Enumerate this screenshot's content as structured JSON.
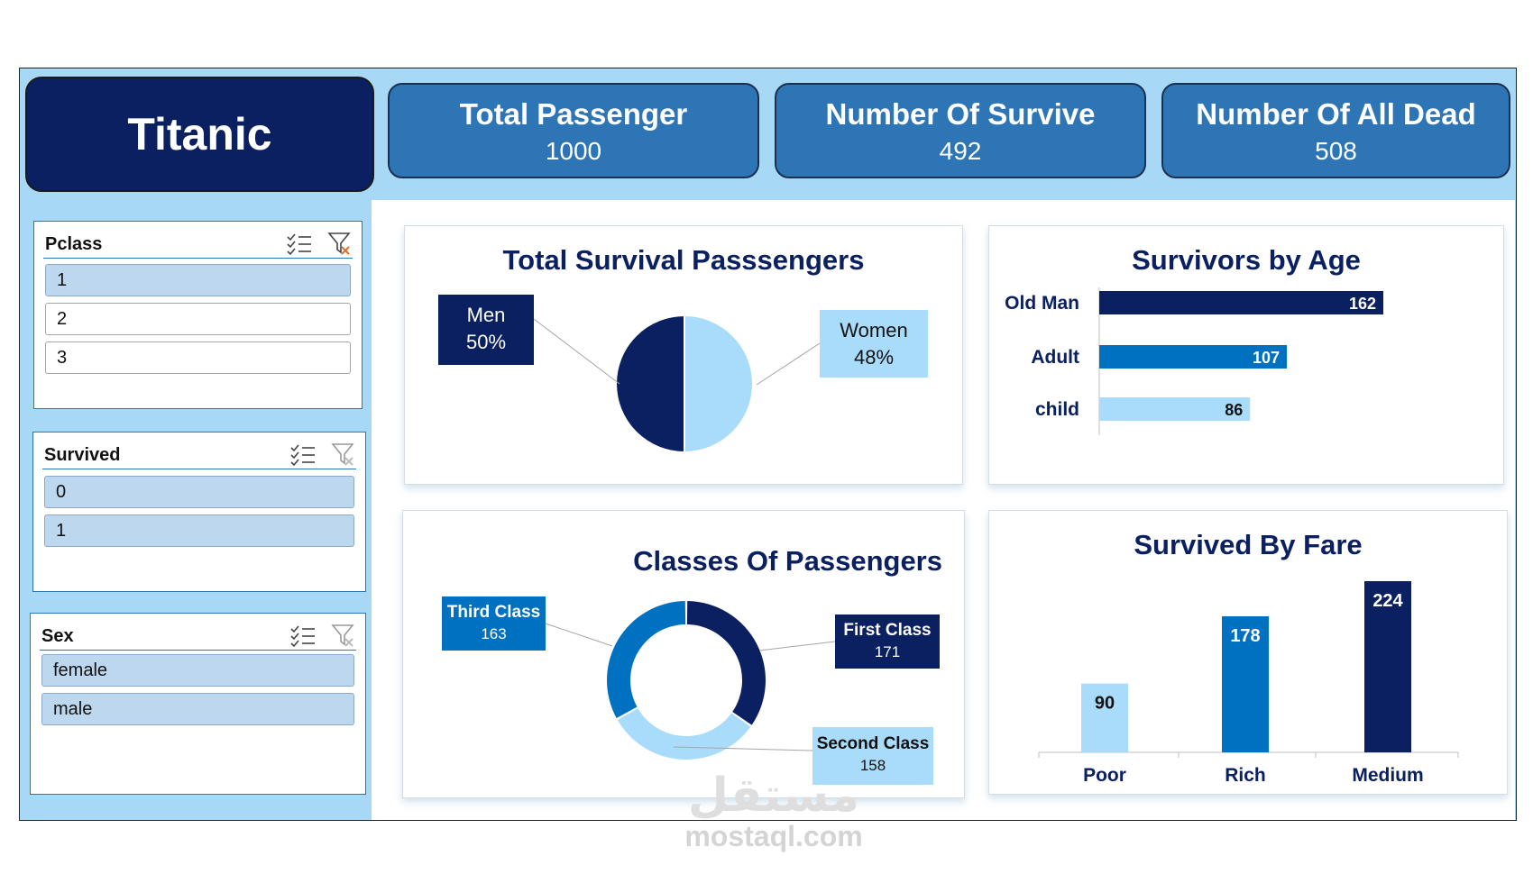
{
  "header": {
    "title": "Titanic",
    "kpis": [
      {
        "label": "Total Passenger",
        "value": "1000"
      },
      {
        "label": "Number Of Survive",
        "value": "492"
      },
      {
        "label": "Number Of All Dead",
        "value": "508"
      }
    ]
  },
  "slicers": [
    {
      "title": "Pclass",
      "items": [
        {
          "label": "1",
          "selected": true
        },
        {
          "label": "2",
          "selected": false
        },
        {
          "label": "3",
          "selected": false
        }
      ]
    },
    {
      "title": "Survived",
      "items": [
        {
          "label": "0",
          "selected": true
        },
        {
          "label": "1",
          "selected": true
        }
      ]
    },
    {
      "title": "Sex",
      "items": [
        {
          "label": "female",
          "selected": true
        },
        {
          "label": "male",
          "selected": true
        }
      ]
    }
  ],
  "icons": {
    "multi_select": "multi-select-icon",
    "clear_filter": "clear-filter-icon"
  },
  "colors": {
    "navy": "#0b2060",
    "blue": "#0070c0",
    "light_blue": "#a9dcfb",
    "kpi_blue": "#2e75b6",
    "background": "#a7d9f7"
  },
  "chart_data": [
    {
      "type": "pie",
      "title": "Total Survival Passsengers",
      "slices": [
        {
          "label": "Men",
          "percent_label": "50%",
          "value": 50
        },
        {
          "label": "Women",
          "percent_label": "48%",
          "value": 48
        }
      ]
    },
    {
      "type": "bar",
      "orientation": "horizontal",
      "title": "Survivors by Age",
      "categories": [
        "Old Man",
        "Adult",
        "child"
      ],
      "values": [
        162,
        107,
        86
      ]
    },
    {
      "type": "pie",
      "variant": "donut",
      "title": "Classes Of Passengers",
      "slices": [
        {
          "label": "First Class",
          "value": 171
        },
        {
          "label": "Second Class",
          "value": 158
        },
        {
          "label": "Third Class",
          "value": 163
        }
      ]
    },
    {
      "type": "bar",
      "title": "Survived By Fare",
      "categories": [
        "Poor",
        "Rich",
        "Medium"
      ],
      "values": [
        90,
        178,
        224
      ]
    }
  ],
  "watermark": {
    "arabic": "مستقل",
    "latin": "mostaql.com"
  }
}
